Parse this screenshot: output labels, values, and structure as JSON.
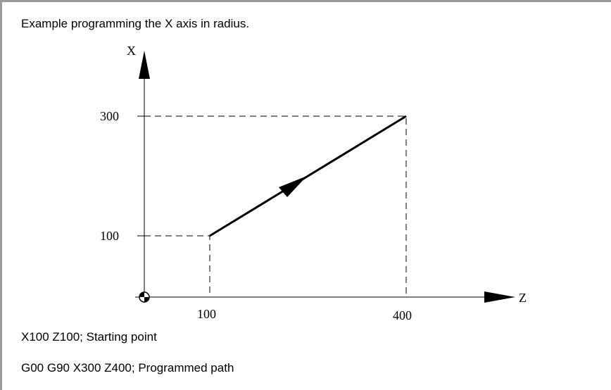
{
  "caption": "Example programming the X axis in radius.",
  "diagram": {
    "x_axis_label": "X",
    "z_axis_label": "Z",
    "x_ticks": [
      "300",
      "100"
    ],
    "z_ticks": [
      "100",
      "400"
    ]
  },
  "program_lines": [
    "X100 Z100; Starting point",
    "G00 G90 X300 Z400; Programmed path"
  ]
}
